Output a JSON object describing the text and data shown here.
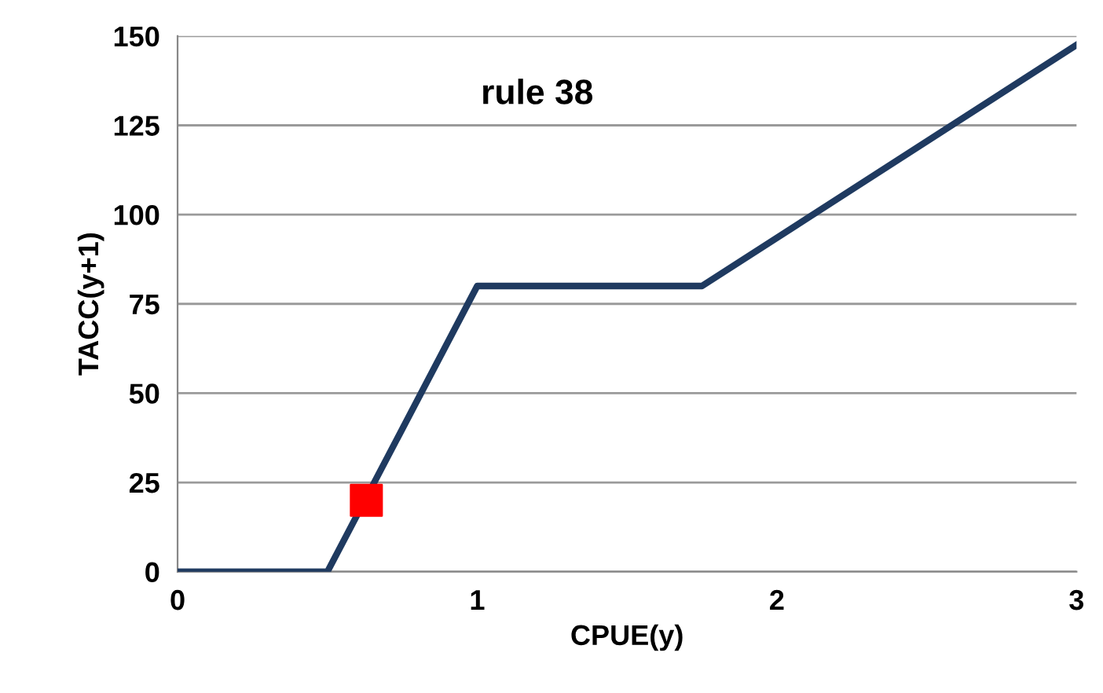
{
  "chart_data": {
    "type": "line",
    "xlabel": "CPUE(y)",
    "ylabel": "TACC(y+1)",
    "annotations": [
      "rule 38"
    ],
    "xlim": [
      0,
      3
    ],
    "xticks": [
      0,
      1,
      2,
      3
    ],
    "ylim": [
      0,
      150
    ],
    "yticks": [
      0,
      25,
      50,
      75,
      100,
      125,
      150
    ],
    "grid": "y",
    "legend": false,
    "series": [
      {
        "color": "#1f3a60",
        "x": [
          0,
          0.5,
          1,
          1.75,
          3
        ],
        "values": [
          0,
          0,
          80,
          80,
          147.5
        ],
        "marker": "none",
        "line_style": "solid"
      },
      {
        "type": "scatter",
        "color": "#ff0000",
        "x": [
          0.63
        ],
        "values": [
          20
        ],
        "marker": "square"
      }
    ]
  }
}
